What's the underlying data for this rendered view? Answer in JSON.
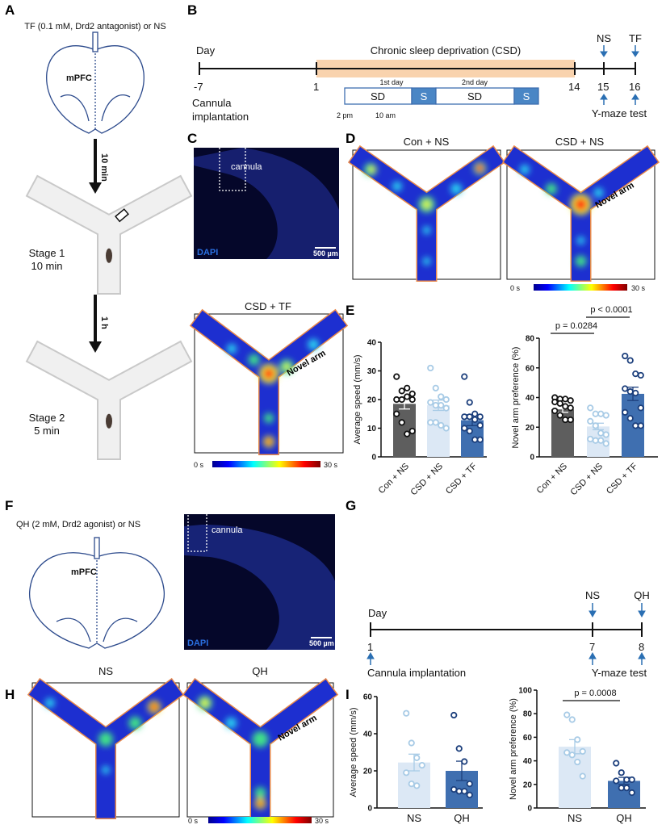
{
  "panels": {
    "A": {
      "label": "A",
      "treatment": "TF (0.1 mM, Drd2 antagonist) or NS",
      "region": "mPFC",
      "interval1": "10 min",
      "interval2": "1 h",
      "stage1": "Stage 1",
      "stage1_time": "10 min",
      "stage2": "Stage 2",
      "stage2_time": "5 min"
    },
    "B": {
      "label": "B",
      "day": "Day",
      "csd": "Chronic sleep deprivation (CSD)",
      "ticks": [
        "-7",
        "1",
        "14",
        "15",
        "16"
      ],
      "cannula1": "Cannula",
      "cannula2": "implantation",
      "sd": "SD",
      "s": "S",
      "day1": "1st day",
      "day2": "2nd day",
      "time1": "2 pm",
      "time2": "10 am",
      "ns": "NS",
      "tf": "TF",
      "ymaze": "Y-maze test",
      "csd_color": "#f9d3ae"
    },
    "C": {
      "label": "C",
      "cannula": "cannula",
      "stain": "DAPI",
      "scale": "500 µm"
    },
    "D": {
      "label": "D",
      "title1": "Con + NS",
      "title2": "CSD + NS",
      "novel": "Novel arm",
      "cbar_min": "0 s",
      "cbar_max": "30 s"
    },
    "CSDTF": {
      "title": "CSD + TF",
      "novel": "Novel arm",
      "cbar_min": "0 s",
      "cbar_max": "30 s"
    },
    "E": {
      "label": "E"
    },
    "F": {
      "label": "F",
      "treatment": "QH (2 mM, Drd2 agonist) or NS",
      "region": "mPFC",
      "cannula": "cannula",
      "stain": "DAPI",
      "scale": "500 µm"
    },
    "G": {
      "label": "G",
      "day": "Day",
      "ticks": [
        "1",
        "7",
        "8"
      ],
      "ns": "NS",
      "qh": "QH",
      "cannula": "Cannula implantation",
      "ymaze": "Y-maze test"
    },
    "H": {
      "label": "H",
      "title1": "NS",
      "title2": "QH",
      "novel": "Novel arm",
      "cbar_min": "0 s",
      "cbar_max": "30 s"
    },
    "I": {
      "label": "I"
    }
  },
  "chart_data": [
    {
      "id": "E-speed",
      "type": "bar",
      "ylabel": "Average speed (mm/s)",
      "ylim": [
        0,
        40
      ],
      "yticks": [
        0,
        10,
        20,
        30,
        40
      ],
      "categories": [
        "Con + NS",
        "CSD + NS",
        "CSD + TF"
      ],
      "values": [
        18.5,
        18,
        12.8
      ],
      "sem": [
        1.8,
        1.8,
        1.9
      ],
      "points": [
        [
          28,
          23,
          24,
          22,
          20,
          20,
          21,
          20,
          15,
          12,
          8,
          9
        ],
        [
          31,
          24,
          21,
          20,
          19,
          18,
          18,
          17,
          12,
          12,
          11,
          10
        ],
        [
          28,
          19,
          15,
          14,
          14,
          14,
          13,
          11,
          10,
          9,
          6,
          6
        ]
      ],
      "bar_colors": [
        "#5e5e5e",
        "#dce8f5",
        "#3f6fb0"
      ],
      "point_colors": [
        "#111111",
        "#a8cbe6",
        "#1c3f7c"
      ],
      "comparisons": []
    },
    {
      "id": "E-pref",
      "type": "bar",
      "ylabel": "Novel arm preference (%)",
      "ylim": [
        0,
        80
      ],
      "yticks": [
        0,
        20,
        40,
        60,
        80
      ],
      "categories": [
        "Con + NS",
        "CSD + NS",
        "CSD + TF"
      ],
      "values": [
        32,
        20.5,
        42.5
      ],
      "sem": [
        2,
        2.2,
        4.5
      ],
      "points": [
        [
          40,
          39,
          39,
          38,
          37,
          36,
          34,
          33,
          31,
          28,
          25,
          25
        ],
        [
          33,
          29,
          29,
          28,
          24,
          21,
          16,
          15,
          12,
          11,
          11,
          9
        ],
        [
          68,
          65,
          56,
          55,
          46,
          44,
          43,
          33,
          30,
          26,
          21,
          21
        ]
      ],
      "bar_colors": [
        "#5e5e5e",
        "#dce8f5",
        "#3f6fb0"
      ],
      "point_colors": [
        "#111111",
        "#a8cbe6",
        "#1c3f7c"
      ],
      "comparisons": [
        {
          "from": 0,
          "to": 1,
          "text": "p = 0.0284"
        },
        {
          "from": 1,
          "to": 2,
          "text": "p < 0.0001"
        }
      ]
    },
    {
      "id": "I-speed",
      "type": "bar",
      "ylabel": "Average speed (mm/s)",
      "ylim": [
        0,
        60
      ],
      "yticks": [
        0,
        20,
        40,
        60
      ],
      "categories": [
        "NS",
        "QH"
      ],
      "values": [
        24.5,
        20
      ],
      "sem": [
        4.5,
        5.2
      ],
      "points": [
        [
          51,
          35,
          27,
          23,
          19,
          13,
          12
        ],
        [
          50,
          32,
          25,
          13,
          10,
          9,
          9,
          7
        ]
      ],
      "bar_colors": [
        "#dce8f5",
        "#3f6fb0"
      ],
      "point_colors": [
        "#a8cbe6",
        "#1c3f7c"
      ],
      "comparisons": []
    },
    {
      "id": "I-pref",
      "type": "bar",
      "ylabel": "Novel arm preference (%)",
      "ylim": [
        0,
        100
      ],
      "yticks": [
        0,
        20,
        40,
        60,
        80,
        100
      ],
      "categories": [
        "NS",
        "QH"
      ],
      "values": [
        52,
        23
      ],
      "sem": [
        6,
        3
      ],
      "points": [
        [
          79,
          75,
          58,
          48,
          47,
          45,
          39,
          27
        ],
        [
          38,
          30,
          24,
          24,
          23,
          17,
          17,
          13
        ]
      ],
      "bar_colors": [
        "#dce8f5",
        "#3f6fb0"
      ],
      "point_colors": [
        "#a8cbe6",
        "#1c3f7c"
      ],
      "comparisons": [
        {
          "from": 0,
          "to": 1,
          "text": "p = 0.0008"
        }
      ]
    }
  ]
}
